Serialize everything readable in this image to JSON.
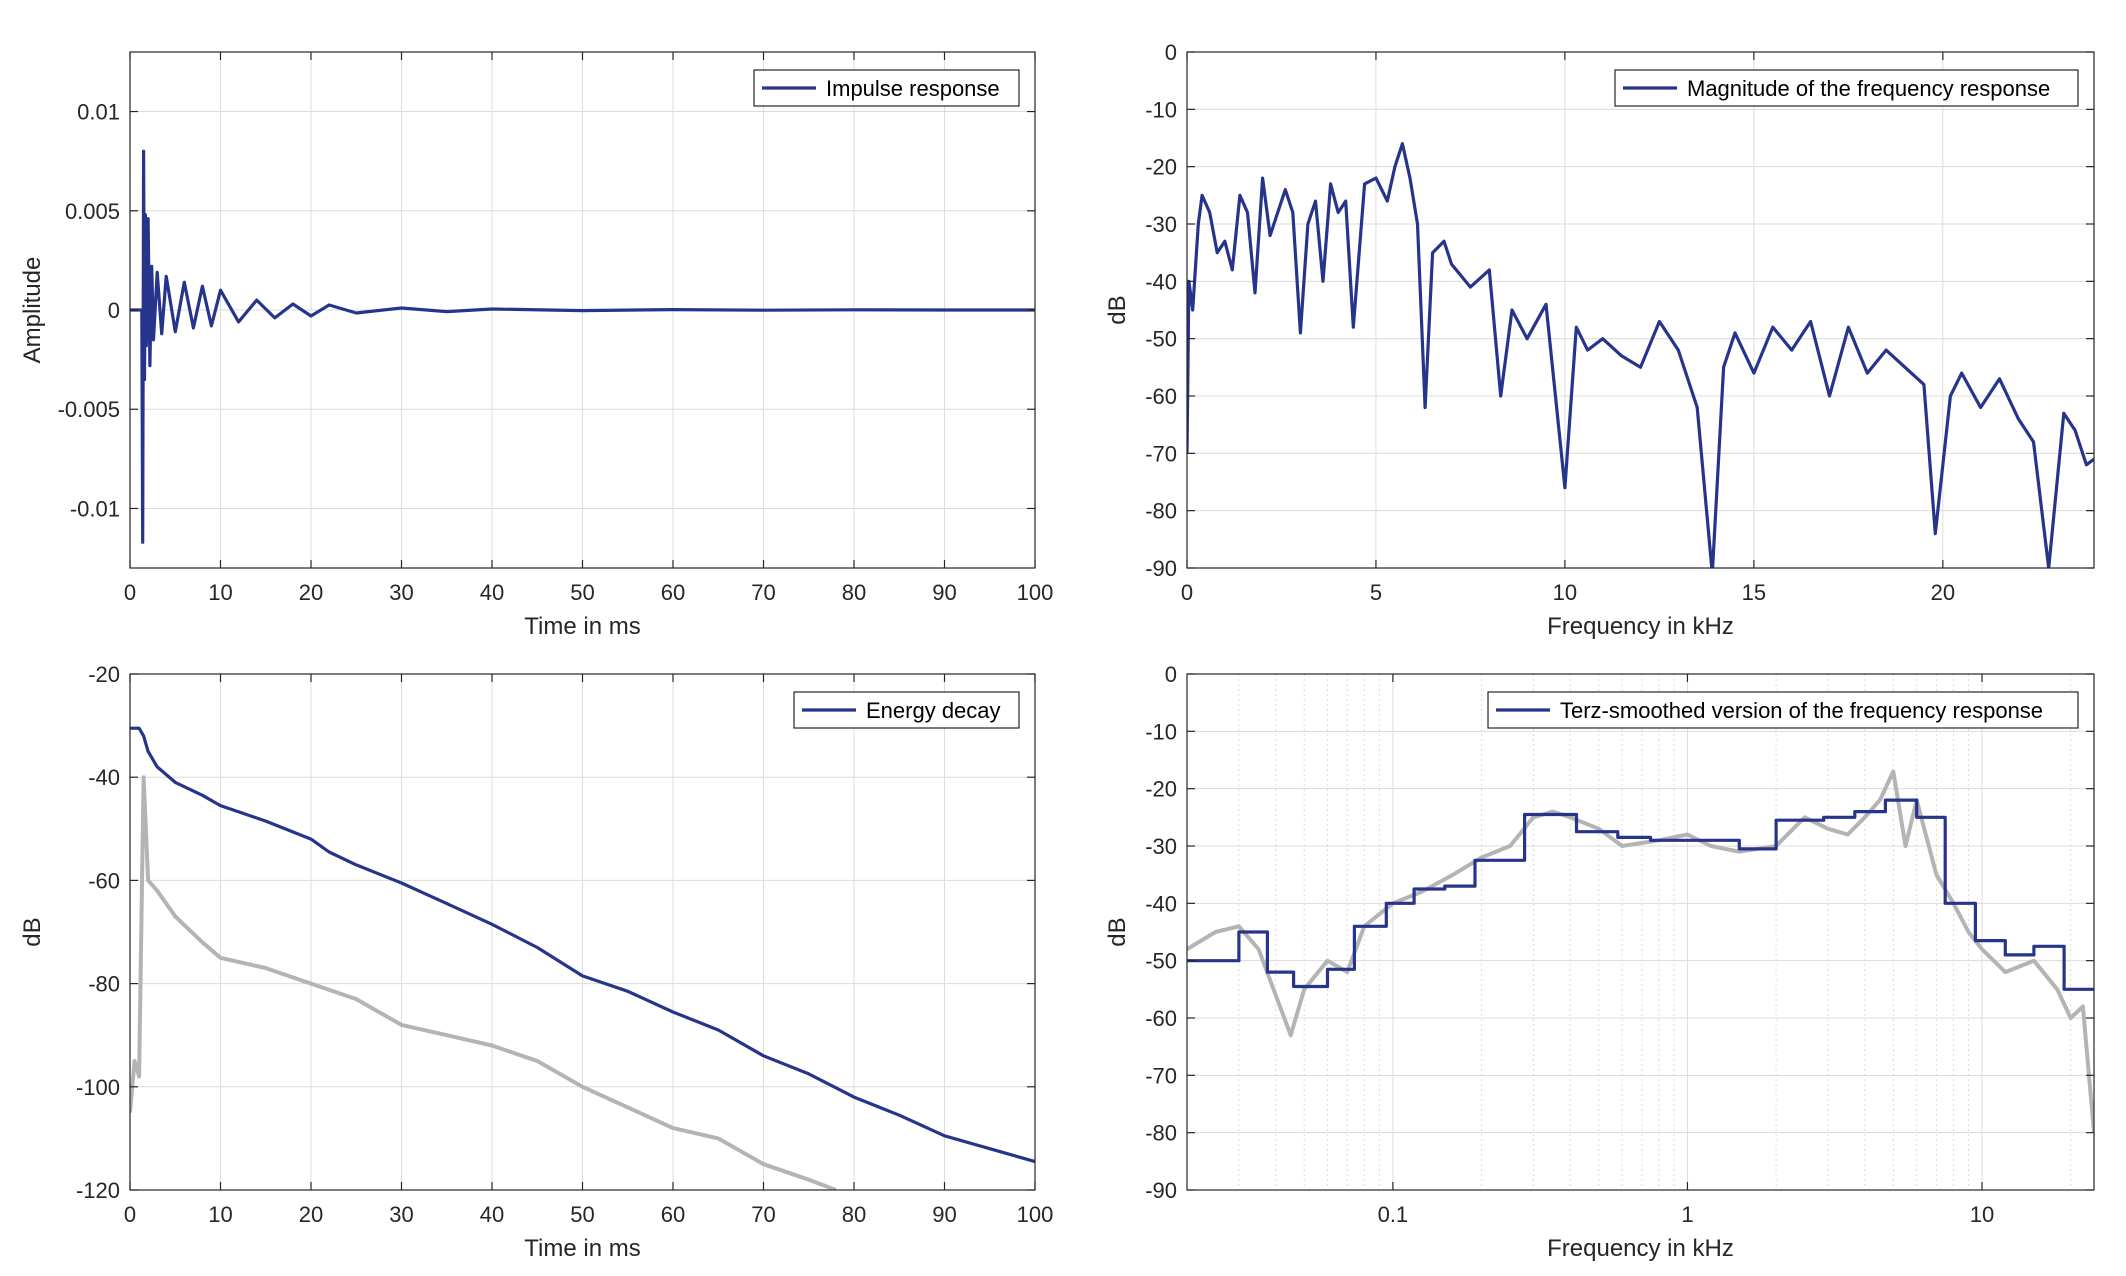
{
  "figure": {
    "background": "#ffffff",
    "colors": {
      "blue": "#27348b",
      "gray": "#b4b4b4",
      "grid": "#dcdcdc",
      "axis": "#262626"
    }
  },
  "chart_data": [
    {
      "id": "impulse",
      "type": "line",
      "title": "",
      "xlabel": "Time in ms",
      "ylabel": "Amplitude",
      "xlim": [
        0,
        100
      ],
      "ylim": [
        -0.013,
        0.013
      ],
      "xticks": [
        0,
        10,
        20,
        30,
        40,
        50,
        60,
        70,
        80,
        90,
        100
      ],
      "xtick_labels": [
        "0",
        "10",
        "20",
        "30",
        "40",
        "50",
        "60",
        "70",
        "80",
        "90",
        "100"
      ],
      "yticks": [
        0.01,
        0.005,
        0,
        -0.005,
        -0.01
      ],
      "ytick_labels": [
        "0.01",
        "0.005",
        "0",
        "-0.005",
        "-0.01"
      ],
      "grid": true,
      "legend_position": "top-right",
      "series": [
        {
          "name": "Impulse response",
          "color": "#27348b",
          "x": [
            0,
            1.3,
            1.4,
            1.5,
            1.6,
            1.7,
            1.8,
            2.0,
            2.2,
            2.4,
            2.6,
            3.0,
            3.5,
            4.0,
            5.0,
            6.0,
            7.0,
            8.0,
            9.0,
            10.0,
            12.0,
            14.0,
            16.0,
            18.0,
            20.0,
            22.0,
            25.0,
            30.0,
            35.0,
            40.0,
            50.0,
            60.0,
            70.0,
            80.0,
            90.0,
            100.0
          ],
          "y": [
            0,
            0,
            -0.0117,
            0.008,
            -0.0035,
            0.0048,
            -0.0018,
            0.0046,
            -0.0028,
            0.0022,
            -0.0015,
            0.0019,
            -0.0012,
            0.0017,
            -0.0011,
            0.0014,
            -0.0009,
            0.0012,
            -0.0008,
            0.001,
            -0.0006,
            0.0005,
            -0.0004,
            0.0003,
            -0.0003,
            0.00025,
            -0.00015,
            0.0001,
            -8e-05,
            5e-05,
            -3e-05,
            2e-05,
            -1e-05,
            1e-05,
            0,
            0
          ]
        }
      ]
    },
    {
      "id": "magnitude",
      "type": "line",
      "title": "",
      "xlabel": "Frequency in kHz",
      "ylabel": "dB",
      "xlim": [
        0,
        24
      ],
      "ylim": [
        -90,
        0
      ],
      "xticks": [
        0,
        5,
        10,
        15,
        20
      ],
      "xtick_labels": [
        "0",
        "5",
        "10",
        "15",
        "20"
      ],
      "yticks": [
        0,
        -10,
        -20,
        -30,
        -40,
        -50,
        -60,
        -70,
        -80,
        -90
      ],
      "ytick_labels": [
        "0",
        "-10",
        "-20",
        "-30",
        "-40",
        "-50",
        "-60",
        "-70",
        "-80",
        "-90"
      ],
      "grid": true,
      "legend_position": "top-right",
      "series": [
        {
          "name": "Magnitude of the frequency response",
          "color": "#27348b",
          "x": [
            0,
            0.05,
            0.15,
            0.3,
            0.4,
            0.6,
            0.8,
            1.0,
            1.2,
            1.4,
            1.6,
            1.8,
            2.0,
            2.2,
            2.6,
            2.8,
            3.0,
            3.2,
            3.4,
            3.6,
            3.8,
            4.0,
            4.2,
            4.4,
            4.7,
            5.0,
            5.3,
            5.5,
            5.7,
            5.9,
            6.1,
            6.3,
            6.5,
            6.8,
            7.0,
            7.5,
            8.0,
            8.3,
            8.6,
            9.0,
            9.5,
            10.0,
            10.3,
            10.6,
            11.0,
            11.5,
            12.0,
            12.5,
            13.0,
            13.5,
            13.9,
            14.2,
            14.5,
            15.0,
            15.5,
            16.0,
            16.5,
            17.0,
            17.5,
            18.0,
            18.5,
            19.0,
            19.5,
            19.8,
            20.2,
            20.5,
            21.0,
            21.5,
            22.0,
            22.4,
            22.8,
            23.2,
            23.5,
            23.8,
            24.0
          ],
          "y": [
            -70,
            -40,
            -45,
            -30,
            -25,
            -28,
            -35,
            -33,
            -38,
            -25,
            -28,
            -42,
            -22,
            -32,
            -24,
            -28,
            -49,
            -30,
            -26,
            -40,
            -23,
            -28,
            -26,
            -48,
            -23,
            -22,
            -26,
            -20,
            -16,
            -22,
            -30,
            -62,
            -35,
            -33,
            -37,
            -41,
            -38,
            -60,
            -45,
            -50,
            -44,
            -76,
            -48,
            -52,
            -50,
            -53,
            -55,
            -47,
            -52,
            -62,
            -91,
            -55,
            -49,
            -56,
            -48,
            -52,
            -47,
            -60,
            -48,
            -56,
            -52,
            -55,
            -58,
            -84,
            -60,
            -56,
            -62,
            -57,
            -64,
            -68,
            -90,
            -63,
            -66,
            -72,
            -71
          ]
        }
      ]
    },
    {
      "id": "energy",
      "type": "line",
      "title": "",
      "xlabel": "Time in ms",
      "ylabel": "dB",
      "xlim": [
        0,
        100
      ],
      "ylim": [
        -120,
        -20
      ],
      "xticks": [
        0,
        10,
        20,
        30,
        40,
        50,
        60,
        70,
        80,
        90,
        100
      ],
      "xtick_labels": [
        "0",
        "10",
        "20",
        "30",
        "40",
        "50",
        "60",
        "70",
        "80",
        "90",
        "100"
      ],
      "yticks": [
        -20,
        -40,
        -60,
        -80,
        -100,
        -120
      ],
      "ytick_labels": [
        "-20",
        "-40",
        "-60",
        "-80",
        "-100",
        "-120"
      ],
      "grid": true,
      "legend_position": "top-right",
      "series": [
        {
          "name": "",
          "color": "#b4b4b4",
          "x": [
            0,
            0.5,
            1.0,
            1.5,
            2.0,
            3.0,
            5.0,
            8.0,
            10.0,
            15.0,
            20.0,
            25.0,
            30.0,
            35.0,
            40.0,
            45.0,
            50.0,
            55.0,
            60.0,
            65.0,
            70.0,
            75.0,
            78.0
          ],
          "y": [
            -105,
            -95,
            -98,
            -40,
            -60,
            -62,
            -67,
            -72,
            -75,
            -77,
            -80,
            -83,
            -88,
            -90,
            -92,
            -95,
            -100,
            -104,
            -108,
            -110,
            -115,
            -118,
            -120
          ]
        },
        {
          "name": "Energy decay",
          "color": "#27348b",
          "x": [
            0,
            1.0,
            1.5,
            2.0,
            3.0,
            5.0,
            8.0,
            10.0,
            15.0,
            20.0,
            22.0,
            25.0,
            30.0,
            35.0,
            40.0,
            45.0,
            50.0,
            55.0,
            60.0,
            65.0,
            70.0,
            75.0,
            80.0,
            85.0,
            90.0,
            95.0,
            100.0
          ],
          "y": [
            -30.5,
            -30.5,
            -32,
            -35,
            -38,
            -41,
            -43.5,
            -45.5,
            -48.5,
            -52,
            -54.5,
            -57,
            -60.5,
            -64.5,
            -68.5,
            -73,
            -78.5,
            -81.5,
            -85.5,
            -89,
            -94,
            -97.5,
            -102,
            -105.5,
            -109.5,
            -112,
            -114.5
          ]
        }
      ]
    },
    {
      "id": "terz",
      "type": "line",
      "title": "",
      "xlabel": "Frequency in kHz",
      "ylabel": "dB",
      "xscale": "log",
      "xlim": [
        0.02,
        24
      ],
      "ylim": [
        -90,
        0
      ],
      "xticks": [
        0.1,
        1,
        10
      ],
      "xtick_labels": [
        "0.1",
        "1",
        "10"
      ],
      "yticks": [
        0,
        -10,
        -20,
        -30,
        -40,
        -50,
        -60,
        -70,
        -80,
        -90
      ],
      "ytick_labels": [
        "0",
        "-10",
        "-20",
        "-30",
        "-40",
        "-50",
        "-60",
        "-70",
        "-80",
        "-90"
      ],
      "grid": true,
      "legend_position": "top-right",
      "series": [
        {
          "name": "",
          "color": "#b4b4b4",
          "x": [
            0.02,
            0.025,
            0.03,
            0.035,
            0.04,
            0.045,
            0.05,
            0.06,
            0.07,
            0.08,
            0.1,
            0.125,
            0.16,
            0.2,
            0.25,
            0.3,
            0.35,
            0.4,
            0.5,
            0.6,
            0.8,
            1.0,
            1.2,
            1.5,
            2.0,
            2.5,
            3.0,
            3.5,
            4.0,
            4.5,
            5.0,
            5.5,
            6.0,
            7.0,
            8.0,
            9.0,
            10.0,
            12.0,
            15.0,
            18.0,
            20.0,
            22.0,
            24.0
          ],
          "y": [
            -48,
            -45,
            -44,
            -48,
            -56,
            -63,
            -55,
            -50,
            -52,
            -44,
            -40,
            -38,
            -35,
            -32,
            -30,
            -25,
            -24,
            -25,
            -27,
            -30,
            -29,
            -28,
            -30,
            -31,
            -30,
            -25,
            -27,
            -28,
            -25,
            -22,
            -17,
            -30,
            -22,
            -35,
            -40,
            -45,
            -48,
            -52,
            -50,
            -55,
            -60,
            -58,
            -80
          ]
        },
        {
          "name": "Terz-smoothed version of the frequency response",
          "color": "#27348b",
          "x": [
            0.02,
            0.03,
            0.03,
            0.0375,
            0.0375,
            0.046,
            0.046,
            0.06,
            0.06,
            0.074,
            0.074,
            0.095,
            0.095,
            0.118,
            0.118,
            0.15,
            0.15,
            0.19,
            0.19,
            0.28,
            0.28,
            0.42,
            0.42,
            0.58,
            0.58,
            0.75,
            0.75,
            1.15,
            1.15,
            1.5,
            1.5,
            2.0,
            2.0,
            2.9,
            2.9,
            3.7,
            3.7,
            4.7,
            4.7,
            6.0,
            6.0,
            7.5,
            7.5,
            9.5,
            9.5,
            12.0,
            12.0,
            15.0,
            15.0,
            19.0,
            19.0,
            24.0
          ],
          "y": [
            -50,
            -50,
            -45,
            -45,
            -52,
            -52,
            -54.5,
            -54.5,
            -51.5,
            -51.5,
            -44,
            -44,
            -40,
            -40,
            -37.5,
            -37.5,
            -37,
            -37,
            -32.5,
            -32.5,
            -24.5,
            -24.5,
            -27.5,
            -27.5,
            -28.5,
            -28.5,
            -29,
            -29,
            -29,
            -29,
            -30.5,
            -30.5,
            -25.5,
            -25.5,
            -25,
            -25,
            -24,
            -24,
            -22,
            -22,
            -25,
            -25,
            -40,
            -40,
            -46.5,
            -46.5,
            -49,
            -49,
            -47.5,
            -47.5,
            -55,
            -55
          ]
        }
      ]
    }
  ]
}
